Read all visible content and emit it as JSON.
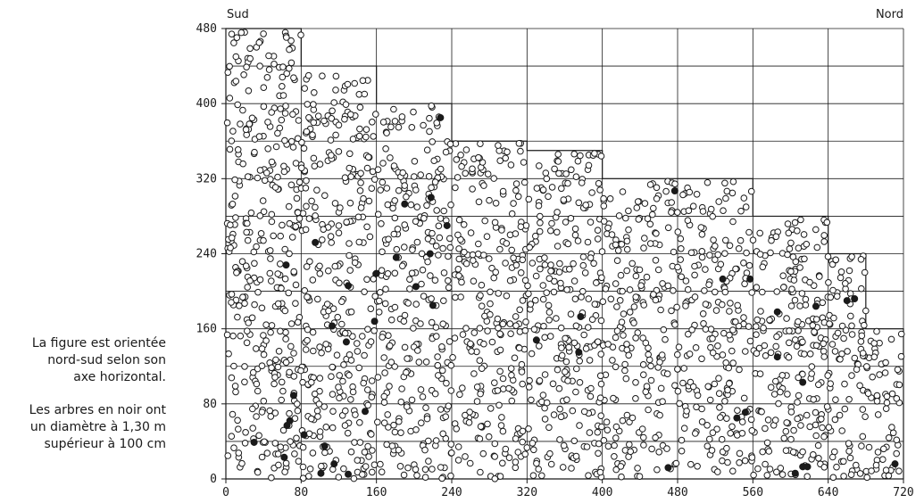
{
  "chart_data": {
    "type": "scatter",
    "title": "",
    "xlabel": "",
    "ylabel": "",
    "xlim": [
      0,
      720
    ],
    "ylim": [
      0,
      480
    ],
    "x_ticks": [
      "0",
      "80",
      "160",
      "240",
      "320",
      "400",
      "480",
      "560",
      "640",
      "720"
    ],
    "y_ticks": [
      "0",
      "80",
      "160",
      "240",
      "320",
      "400",
      "480"
    ],
    "grid": true,
    "corner_labels": {
      "left": "Sud",
      "right": "Nord"
    },
    "boundary": [
      [
        0,
        480
      ],
      [
        80,
        480
      ],
      [
        80,
        440
      ],
      [
        160,
        440
      ],
      [
        160,
        400
      ],
      [
        240,
        400
      ],
      [
        240,
        360
      ],
      [
        320,
        360
      ],
      [
        320,
        350
      ],
      [
        400,
        350
      ],
      [
        400,
        320
      ],
      [
        480,
        320
      ],
      [
        480,
        320
      ],
      [
        560,
        320
      ],
      [
        560,
        280
      ],
      [
        640,
        280
      ],
      [
        640,
        240
      ],
      [
        680,
        240
      ],
      [
        680,
        160
      ],
      [
        720,
        160
      ],
      [
        720,
        0
      ],
      [
        0,
        0
      ]
    ],
    "series": [
      {
        "marker": "open-circle",
        "color": "#1a1a1a",
        "count": 2200,
        "points": []
      },
      {
        "marker": "filled-circle",
        "color": "#1a1a1a",
        "points": [
          [
            228,
            385
          ],
          [
            218,
            300
          ],
          [
            235,
            270
          ],
          [
            95,
            252
          ],
          [
            190,
            293
          ],
          [
            64,
            228
          ],
          [
            181,
            236
          ],
          [
            160,
            219
          ],
          [
            130,
            206
          ],
          [
            217,
            240
          ],
          [
            202,
            205
          ],
          [
            220,
            185
          ],
          [
            158,
            168
          ],
          [
            113,
            163
          ],
          [
            330,
            148
          ],
          [
            377,
            173
          ],
          [
            375,
            135
          ],
          [
            128,
            146
          ],
          [
            30,
            39
          ],
          [
            62,
            23
          ],
          [
            83,
            47
          ],
          [
            68,
            62
          ],
          [
            105,
            35
          ],
          [
            148,
            72
          ],
          [
            72,
            89
          ],
          [
            65,
            57
          ],
          [
            101,
            6
          ],
          [
            115,
            16
          ],
          [
            130,
            5
          ],
          [
            477,
            307
          ],
          [
            528,
            213
          ],
          [
            557,
            213
          ],
          [
            470,
            12
          ],
          [
            552,
            71
          ],
          [
            543,
            65
          ],
          [
            586,
            130
          ],
          [
            613,
            103
          ],
          [
            627,
            184
          ],
          [
            618,
            13
          ],
          [
            605,
            6
          ],
          [
            613,
            13
          ],
          [
            711,
            16
          ],
          [
            586,
            178
          ],
          [
            660,
            190
          ],
          [
            668,
            192
          ]
        ]
      }
    ]
  },
  "captions": {
    "line1": "La figure est orientée nord-sud selon son axe horizontal.",
    "line2": "Les arbres en noir ont un diamètre à 1,30 m supérieur à 100 cm"
  }
}
